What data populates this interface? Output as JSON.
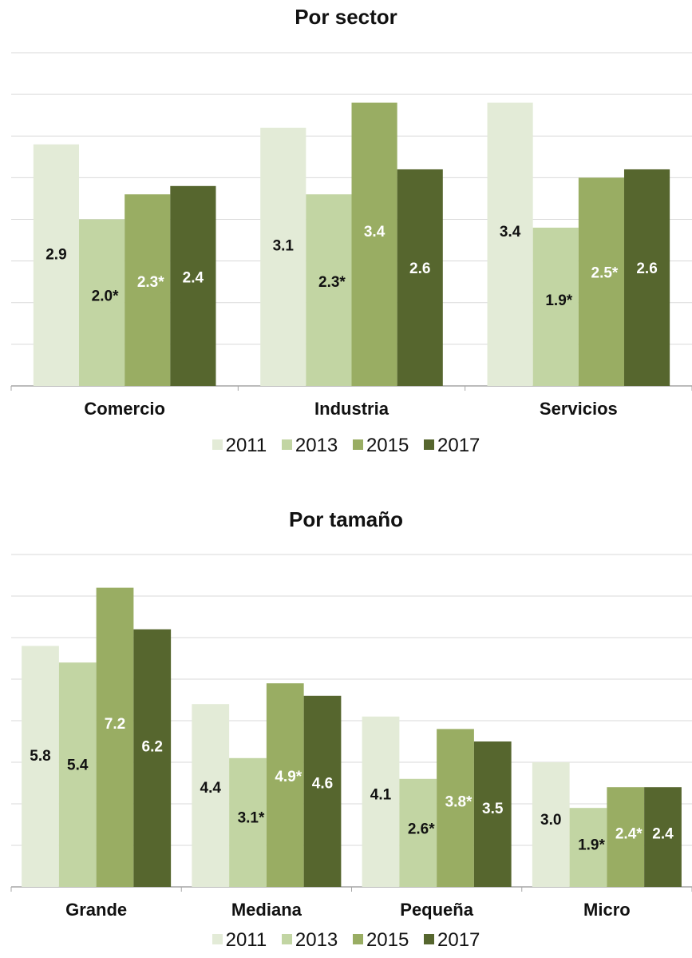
{
  "colors": {
    "2011": "#e3ebd7",
    "2013": "#c2d5a3",
    "2015": "#99ad63",
    "2017": "#56662e",
    "gridline": "#d9d9d9",
    "axis": "#a6a6a6"
  },
  "legend": [
    "2011",
    "2013",
    "2015",
    "2017"
  ],
  "chart_data": [
    {
      "type": "bar",
      "title": "Por sector",
      "categories": [
        "Comercio",
        "Industria",
        "Servicios"
      ],
      "series": [
        {
          "name": "2011",
          "values": [
            2.9,
            3.1,
            3.4
          ],
          "labels": [
            "2.9",
            "3.1",
            "3.4"
          ]
        },
        {
          "name": "2013",
          "values": [
            2.0,
            2.3,
            1.9
          ],
          "labels": [
            "2.0*",
            "2.3*",
            "1.9*"
          ]
        },
        {
          "name": "2015",
          "values": [
            2.3,
            3.4,
            2.5
          ],
          "labels": [
            "2.3*",
            "3.4",
            "2.5*"
          ]
        },
        {
          "name": "2017",
          "values": [
            2.4,
            2.6,
            2.6
          ],
          "labels": [
            "2.4",
            "2.6",
            "2.6"
          ]
        }
      ],
      "ylim": [
        0,
        4.0
      ],
      "grid": true,
      "legend_position": "bottom"
    },
    {
      "type": "bar",
      "title": "Por tamaño",
      "categories": [
        "Grande",
        "Mediana",
        "Pequeña",
        "Micro"
      ],
      "series": [
        {
          "name": "2011",
          "values": [
            5.8,
            4.4,
            4.1,
            3.0
          ],
          "labels": [
            "5.8",
            "4.4",
            "4.1",
            "3.0"
          ]
        },
        {
          "name": "2013",
          "values": [
            5.4,
            3.1,
            2.6,
            1.9
          ],
          "labels": [
            "5.4",
            "3.1*",
            "2.6*",
            "1.9*"
          ]
        },
        {
          "name": "2015",
          "values": [
            7.2,
            4.9,
            3.8,
            2.4
          ],
          "labels": [
            "7.2",
            "4.9*",
            "3.8*",
            "2.4*"
          ]
        },
        {
          "name": "2017",
          "values": [
            6.2,
            4.6,
            3.5,
            2.4
          ],
          "labels": [
            "6.2",
            "4.6",
            "3.5",
            "2.4"
          ]
        }
      ],
      "ylim": [
        0,
        8.0
      ],
      "grid": true,
      "legend_position": "bottom"
    }
  ]
}
